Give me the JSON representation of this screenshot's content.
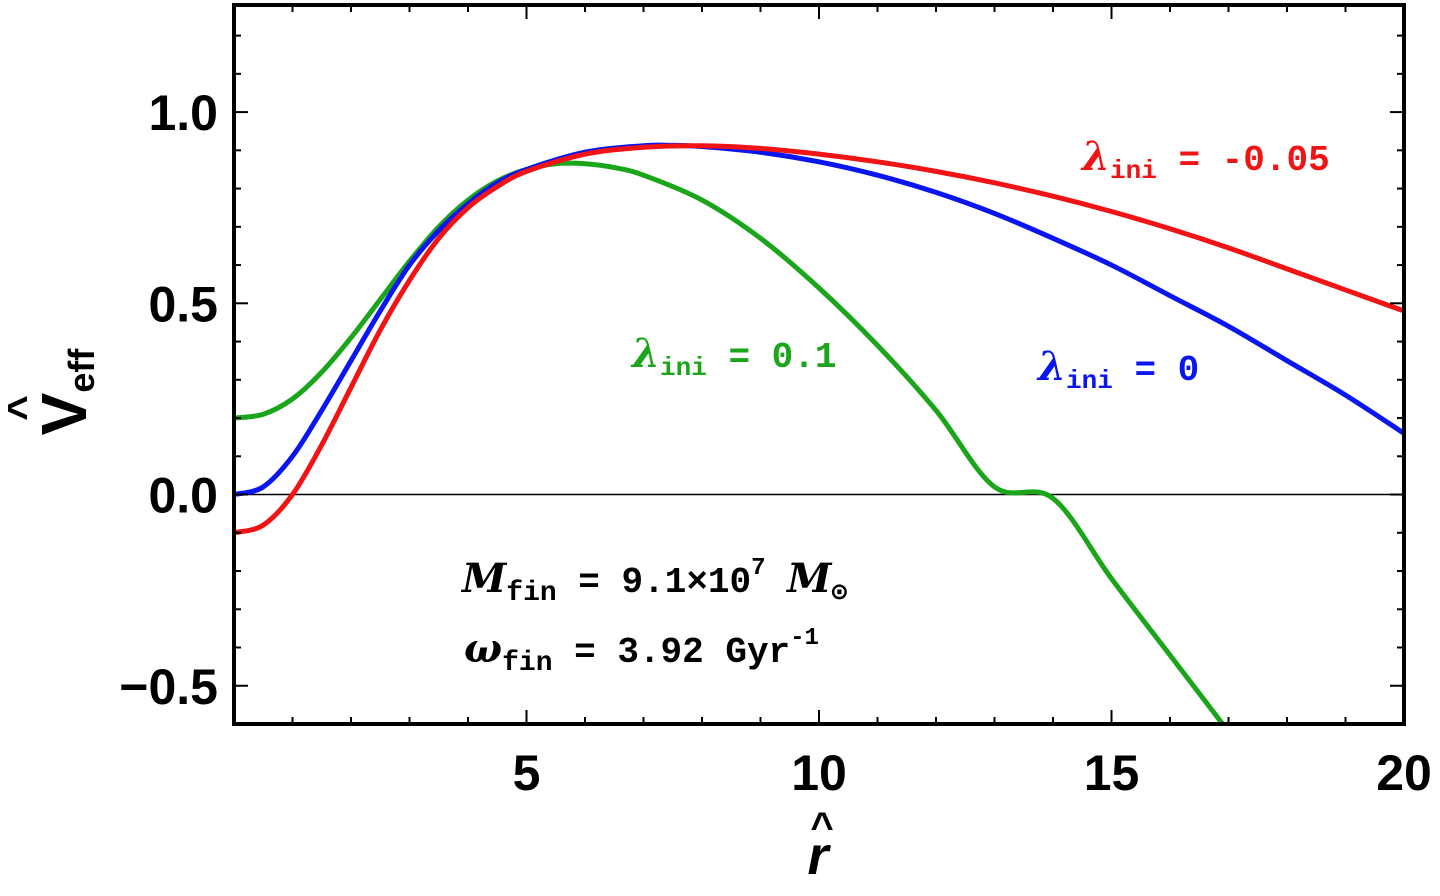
{
  "chart_data": {
    "type": "line",
    "title": "",
    "xlabel": "r",
    "ylabel": "V",
    "ylabel_sub": "eff",
    "xlim": [
      0,
      20
    ],
    "ylim": [
      -0.6,
      1.28
    ],
    "x_ticks": [
      5,
      10,
      15,
      20
    ],
    "x_tick_labels": [
      "5",
      "10",
      "15",
      "20"
    ],
    "y_ticks": [
      -0.5,
      0.0,
      0.5,
      1.0
    ],
    "y_tick_labels": [
      "−0.5",
      "0.0",
      "0.5",
      "1.0"
    ],
    "grid": false,
    "zero_line": true,
    "series": [
      {
        "name": "λ̂_ini = 0.1",
        "label": {
          "symbol": "λ",
          "sub": "ini",
          "rest": " = 0.1"
        },
        "color": "#1ba51b",
        "x": [
          0,
          0.5,
          1,
          1.5,
          2,
          2.5,
          3,
          3.5,
          4,
          4.5,
          5,
          5.5,
          6,
          6.5,
          7,
          8,
          9,
          10,
          11,
          12,
          13,
          14,
          15,
          16,
          16.9
        ],
        "y": [
          0.2,
          0.21,
          0.25,
          0.32,
          0.41,
          0.51,
          0.61,
          0.7,
          0.77,
          0.82,
          0.85,
          0.865,
          0.865,
          0.855,
          0.835,
          0.77,
          0.67,
          0.54,
          0.39,
          0.22,
          0.02,
          -0.01,
          -0.22,
          -0.42,
          -0.6
        ]
      },
      {
        "name": "λ̂_ini = 0",
        "label": {
          "symbol": "λ",
          "sub": "ini",
          "rest": " = 0"
        },
        "color": "#0a16f0",
        "x": [
          0,
          0.5,
          1,
          1.5,
          2,
          2.5,
          3,
          3.5,
          4,
          4.5,
          5,
          6,
          7,
          7.5,
          8,
          9,
          10,
          11,
          12,
          13,
          14,
          15,
          16,
          17,
          18,
          19,
          20
        ],
        "y": [
          0.0,
          0.02,
          0.1,
          0.22,
          0.35,
          0.48,
          0.6,
          0.69,
          0.76,
          0.815,
          0.85,
          0.895,
          0.912,
          0.913,
          0.91,
          0.895,
          0.87,
          0.835,
          0.79,
          0.735,
          0.67,
          0.6,
          0.52,
          0.44,
          0.35,
          0.26,
          0.16
        ]
      },
      {
        "name": "λ̂_ini = -0.05",
        "label": {
          "symbol": "λ",
          "sub": "ini",
          "rest": " = -0.05"
        },
        "color": "#f01414",
        "x": [
          0,
          0.5,
          1,
          1.5,
          2,
          2.5,
          3,
          3.5,
          4,
          4.5,
          5,
          6,
          7,
          8,
          9,
          10,
          11,
          12,
          13,
          14,
          15,
          16,
          17,
          18,
          19,
          20
        ],
        "y": [
          -0.1,
          -0.08,
          0.0,
          0.13,
          0.28,
          0.43,
          0.56,
          0.67,
          0.75,
          0.805,
          0.845,
          0.89,
          0.908,
          0.912,
          0.905,
          0.89,
          0.87,
          0.845,
          0.815,
          0.78,
          0.74,
          0.695,
          0.645,
          0.59,
          0.535,
          0.48
        ]
      }
    ],
    "annotations": [
      {
        "symbol": "M",
        "sub": "fin",
        "rest": " = 9.1×10",
        "sup": "7",
        "tail_symbol": "M",
        "tail_sub": "⊙"
      },
      {
        "symbol": "ω",
        "sub": "fin",
        "rest": " = 3.92 Gyr",
        "sup": "-1"
      }
    ]
  }
}
